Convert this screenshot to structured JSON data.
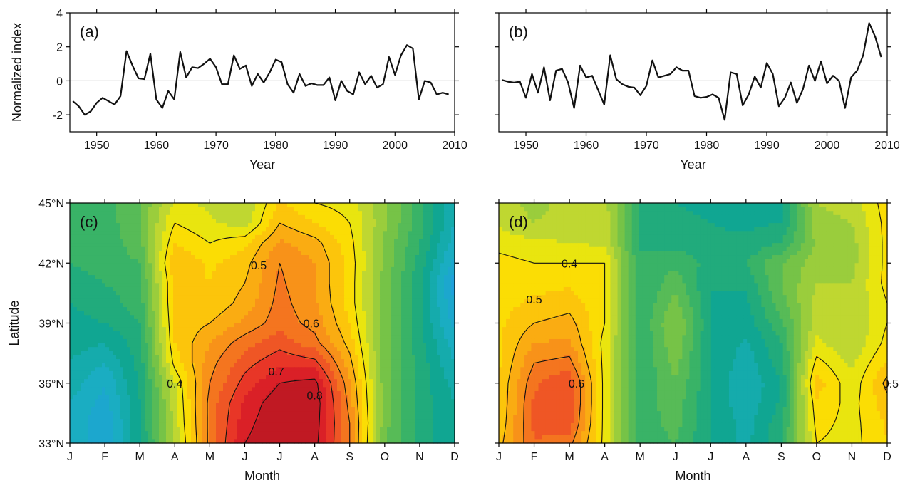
{
  "chart_data": [
    {
      "panel_label": "(a)",
      "type": "line",
      "xlabel": "Year",
      "ylabel": "Normalized index",
      "xlim": [
        1945.5,
        2010
      ],
      "ylim": [
        -3,
        4
      ],
      "xticks": [
        1950,
        1960,
        1970,
        1980,
        1990,
        2000,
        2010
      ],
      "yticks": [
        -2,
        0,
        2,
        4
      ],
      "zero_line": true,
      "x_start": 1946,
      "values": [
        -1.2,
        -1.5,
        -2.0,
        -1.8,
        -1.3,
        -1.0,
        -1.2,
        -1.4,
        -0.9,
        1.75,
        0.9,
        0.15,
        0.1,
        1.6,
        -1.1,
        -1.6,
        -0.6,
        -1.1,
        1.7,
        0.2,
        0.8,
        0.75,
        1.0,
        1.3,
        0.8,
        -0.2,
        -0.2,
        1.5,
        0.7,
        0.9,
        -0.3,
        0.4,
        -0.1,
        0.5,
        1.25,
        1.1,
        -0.2,
        -0.7,
        0.4,
        -0.3,
        -0.15,
        -0.25,
        -0.25,
        0.2,
        -1.15,
        0.0,
        -0.6,
        -0.8,
        0.5,
        -0.2,
        0.3,
        -0.4,
        -0.2,
        1.4,
        0.35,
        1.5,
        2.1,
        1.9,
        -1.1,
        0.0,
        -0.1,
        -0.8,
        -0.7,
        -0.8
      ]
    },
    {
      "panel_label": "(b)",
      "type": "line",
      "xlabel": "Year",
      "ylabel": "",
      "xlim": [
        1945.5,
        2010
      ],
      "ylim": [
        -3,
        4
      ],
      "xticks": [
        1950,
        1960,
        1970,
        1980,
        1990,
        2000,
        2010
      ],
      "yticks": [
        -2,
        0,
        2,
        4
      ],
      "zero_line": true,
      "x_start": 1946,
      "values": [
        0.05,
        -0.05,
        -0.1,
        -0.05,
        -1.0,
        0.4,
        -0.7,
        0.8,
        -1.15,
        0.6,
        0.7,
        -0.1,
        -1.6,
        0.9,
        0.2,
        0.3,
        -0.55,
        -1.4,
        1.5,
        0.1,
        -0.2,
        -0.35,
        -0.4,
        -0.85,
        -0.3,
        1.2,
        0.2,
        0.3,
        0.4,
        0.8,
        0.6,
        0.6,
        -0.9,
        -1.0,
        -0.95,
        -0.8,
        -1.0,
        -2.3,
        0.5,
        0.4,
        -1.45,
        -0.8,
        0.25,
        -0.4,
        1.05,
        0.4,
        -1.5,
        -1.0,
        -0.1,
        -1.3,
        -0.5,
        0.9,
        0.0,
        1.15,
        -0.15,
        0.3,
        0.0,
        -1.6,
        0.2,
        0.6,
        1.5,
        3.4,
        2.6,
        1.4
      ]
    },
    {
      "panel_label": "(c)",
      "type": "heatmap",
      "xlabel": "Month",
      "ylabel": "Latitude",
      "xtick_labels": [
        "J",
        "F",
        "M",
        "A",
        "M",
        "J",
        "J",
        "A",
        "S",
        "O",
        "N",
        "D"
      ],
      "ytick_labels": [
        "33°N",
        "36°N",
        "39°N",
        "42°N",
        "45°N"
      ],
      "latitudes": [
        33,
        34,
        35,
        36,
        37,
        38,
        39,
        40,
        41,
        42,
        43,
        44,
        45
      ],
      "color_range": [
        -0.3,
        0.9
      ],
      "values": [
        [
          -0.05,
          -0.15,
          0.05,
          0.3,
          0.62,
          0.8,
          0.85,
          0.82,
          0.6,
          0.2,
          0.08,
          0.0
        ],
        [
          -0.05,
          -0.15,
          0.05,
          0.32,
          0.62,
          0.78,
          0.85,
          0.83,
          0.6,
          0.22,
          0.08,
          0.0
        ],
        [
          -0.05,
          -0.12,
          0.05,
          0.33,
          0.62,
          0.76,
          0.84,
          0.84,
          0.58,
          0.22,
          0.08,
          0.0
        ],
        [
          -0.02,
          -0.1,
          0.06,
          0.35,
          0.6,
          0.72,
          0.8,
          0.82,
          0.56,
          0.22,
          0.08,
          -0.02
        ],
        [
          0.0,
          -0.05,
          0.07,
          0.42,
          0.58,
          0.68,
          0.74,
          0.72,
          0.52,
          0.22,
          0.08,
          -0.05
        ],
        [
          0.02,
          0.0,
          0.08,
          0.45,
          0.55,
          0.63,
          0.68,
          0.62,
          0.48,
          0.22,
          0.07,
          -0.08
        ],
        [
          0.03,
          0.05,
          0.1,
          0.46,
          0.5,
          0.56,
          0.63,
          0.58,
          0.45,
          0.22,
          0.06,
          -0.12
        ],
        [
          0.05,
          0.08,
          0.12,
          0.47,
          0.46,
          0.52,
          0.62,
          0.56,
          0.43,
          0.22,
          0.06,
          -0.15
        ],
        [
          0.08,
          0.1,
          0.13,
          0.47,
          0.45,
          0.5,
          0.61,
          0.55,
          0.43,
          0.22,
          0.06,
          -0.18
        ],
        [
          0.1,
          0.12,
          0.15,
          0.5,
          0.44,
          0.48,
          0.6,
          0.55,
          0.43,
          0.24,
          0.08,
          -0.12
        ],
        [
          0.1,
          0.12,
          0.18,
          0.45,
          0.4,
          0.44,
          0.56,
          0.52,
          0.42,
          0.24,
          0.1,
          -0.08
        ],
        [
          0.1,
          0.12,
          0.2,
          0.4,
          0.36,
          0.32,
          0.5,
          0.45,
          0.4,
          0.26,
          0.12,
          -0.05
        ],
        [
          0.1,
          0.12,
          0.2,
          0.36,
          0.34,
          0.3,
          0.46,
          0.4,
          0.38,
          0.26,
          0.12,
          -0.05
        ]
      ],
      "contour_levels": [
        0.4,
        0.5,
        0.6,
        0.7,
        0.8
      ],
      "contour_labels": [
        {
          "text": "0.4",
          "month": 3.0,
          "lat": 36.0
        },
        {
          "text": "0.5",
          "month": 5.4,
          "lat": 41.9
        },
        {
          "text": "0.6",
          "month": 6.9,
          "lat": 39.0
        },
        {
          "text": "0.7",
          "month": 5.9,
          "lat": 36.6
        },
        {
          "text": "0.8",
          "month": 7.0,
          "lat": 35.4
        }
      ]
    },
    {
      "panel_label": "(d)",
      "type": "heatmap",
      "xlabel": "Month",
      "ylabel": "",
      "xtick_labels": [
        "J",
        "F",
        "M",
        "A",
        "M",
        "J",
        "J",
        "A",
        "S",
        "O",
        "N",
        "D"
      ],
      "ytick_labels": [
        "33°N",
        "36°N",
        "39°N",
        "42°N",
        "45°N"
      ],
      "latitudes": [
        33,
        34,
        35,
        36,
        37,
        38,
        39,
        40,
        41,
        42,
        43,
        44,
        45
      ],
      "color_range": [
        -0.3,
        0.9
      ],
      "values": [
        [
          0.48,
          0.65,
          0.62,
          0.38,
          0.12,
          0.15,
          0.05,
          -0.02,
          0.1,
          0.4,
          0.38,
          0.45
        ],
        [
          0.46,
          0.66,
          0.68,
          0.38,
          0.12,
          0.17,
          0.05,
          -0.02,
          0.08,
          0.42,
          0.38,
          0.46
        ],
        [
          0.45,
          0.66,
          0.7,
          0.38,
          0.12,
          0.18,
          0.05,
          -0.04,
          0.06,
          0.44,
          0.38,
          0.48
        ],
        [
          0.45,
          0.64,
          0.7,
          0.38,
          0.1,
          0.2,
          0.05,
          -0.05,
          0.05,
          0.48,
          0.36,
          0.52
        ],
        [
          0.44,
          0.6,
          0.62,
          0.38,
          0.1,
          0.22,
          0.05,
          -0.03,
          0.08,
          0.42,
          0.34,
          0.46
        ],
        [
          0.44,
          0.55,
          0.56,
          0.38,
          0.1,
          0.24,
          0.05,
          -0.01,
          0.1,
          0.36,
          0.3,
          0.42
        ],
        [
          0.44,
          0.5,
          0.52,
          0.4,
          0.1,
          0.26,
          0.05,
          0.02,
          0.14,
          0.33,
          0.3,
          0.4
        ],
        [
          0.43,
          0.46,
          0.48,
          0.4,
          0.1,
          0.22,
          0.05,
          0.04,
          0.18,
          0.32,
          0.3,
          0.4
        ],
        [
          0.42,
          0.43,
          0.44,
          0.4,
          0.1,
          0.18,
          0.05,
          0.06,
          0.2,
          0.3,
          0.3,
          0.42
        ],
        [
          0.42,
          0.4,
          0.4,
          0.4,
          0.1,
          0.14,
          0.08,
          0.1,
          0.2,
          0.28,
          0.28,
          0.42
        ],
        [
          0.38,
          0.36,
          0.35,
          0.34,
          0.1,
          0.08,
          0.06,
          0.06,
          0.1,
          0.26,
          0.28,
          0.42
        ],
        [
          0.34,
          0.3,
          0.33,
          0.33,
          0.1,
          0.06,
          0.05,
          0.04,
          0.05,
          0.28,
          0.3,
          0.42
        ],
        [
          0.33,
          0.28,
          0.32,
          0.32,
          0.1,
          0.05,
          0.04,
          0.04,
          0.05,
          0.3,
          0.32,
          0.43
        ]
      ],
      "contour_levels": [
        0.4,
        0.5,
        0.6
      ],
      "contour_labels": [
        {
          "text": "0.4",
          "month": 2.0,
          "lat": 42.0
        },
        {
          "text": "0.5",
          "month": 1.0,
          "lat": 40.2
        },
        {
          "text": "0.6",
          "month": 2.2,
          "lat": 36.0
        },
        {
          "text": "0.5",
          "month": 11.1,
          "lat": 36.0
        }
      ]
    }
  ]
}
